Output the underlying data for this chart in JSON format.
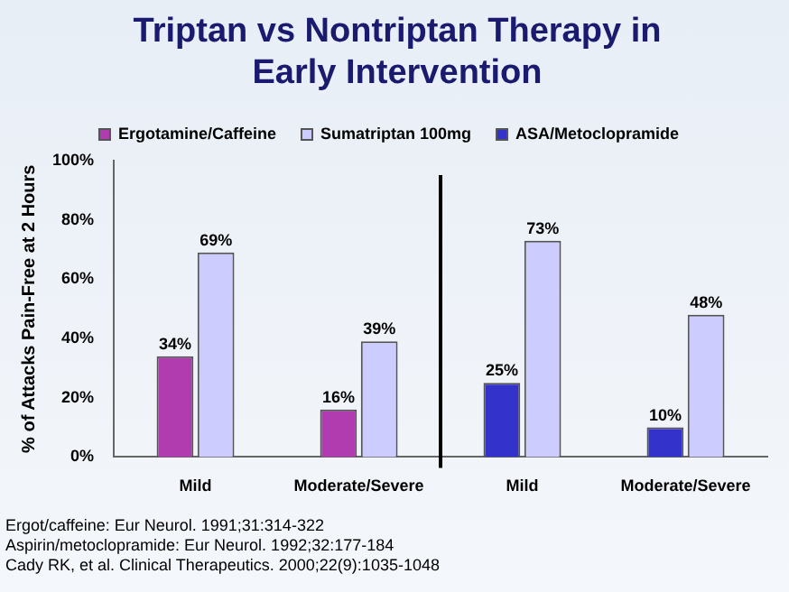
{
  "chart_data": {
    "type": "bar",
    "title": "Triptan vs Nontriptan Therapy in Early Intervention",
    "ylabel": "% of Attacks Pain-Free at 2 Hours",
    "categories": [
      "Mild",
      "Moderate/Severe",
      "Mild",
      "Moderate/Severe"
    ],
    "series": [
      {
        "name": "Ergotamine/Caffeine",
        "color": "#b03cb0",
        "values": [
          34,
          16,
          null,
          null
        ],
        "value_labels": [
          "34%",
          "16%",
          null,
          null
        ]
      },
      {
        "name": "Sumatriptan 100mg",
        "color": "#ccccff",
        "values": [
          69,
          39,
          73,
          48
        ],
        "value_labels": [
          "69%",
          "39%",
          "73%",
          "48%"
        ]
      },
      {
        "name": "ASA/Metoclopramide",
        "color": "#3333cc",
        "values": [
          null,
          null,
          25,
          10
        ],
        "value_labels": [
          null,
          null,
          "25%",
          "10%"
        ]
      }
    ],
    "ylim": [
      0,
      100
    ],
    "yticks": [
      {
        "value": 0,
        "label": "0%"
      },
      {
        "value": 20,
        "label": "20%"
      },
      {
        "value": 40,
        "label": "40%"
      },
      {
        "value": 60,
        "label": "60%"
      },
      {
        "value": 80,
        "label": "80%"
      },
      {
        "value": 100,
        "label": "100%"
      }
    ],
    "grid": false,
    "legend": "top",
    "annotations": [
      "Ergot/caffeine:  Eur Neurol. 1991;31:314-322",
      "Aspirin/metoclopramide:  Eur Neurol. 1992;32:177-184",
      "Cady RK, et al.  Clinical Therapeutics. 2000;22(9):1035-1048"
    ]
  }
}
